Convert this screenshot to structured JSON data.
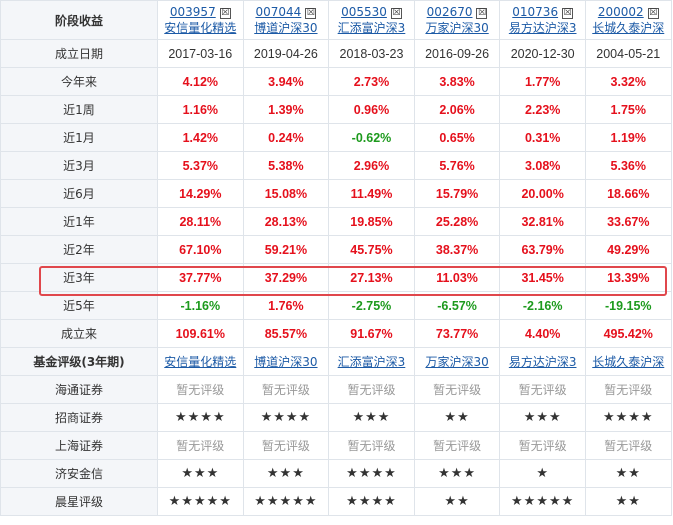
{
  "header": {
    "label": "阶段收益",
    "funds": [
      {
        "code": "003957",
        "name": "安信量化精选",
        "checkbox": "☒"
      },
      {
        "code": "007044",
        "name": "博道沪深30",
        "checkbox": "☒"
      },
      {
        "code": "005530",
        "name": "汇添富沪深3",
        "checkbox": "☒"
      },
      {
        "code": "002670",
        "name": "万家沪深30",
        "checkbox": "☒"
      },
      {
        "code": "010736",
        "name": "易方达沪深3",
        "checkbox": "☒"
      },
      {
        "code": "200002",
        "name": "长城久泰沪深",
        "checkbox": "☒"
      }
    ]
  },
  "inception": {
    "label": "成立日期",
    "dates": [
      "2017-03-16",
      "2019-04-26",
      "2018-03-23",
      "2016-09-26",
      "2020-12-30",
      "2004-05-21"
    ]
  },
  "returns": [
    {
      "label": "今年来",
      "values": [
        "4.12%",
        "3.94%",
        "2.73%",
        "3.83%",
        "1.77%",
        "3.32%"
      ]
    },
    {
      "label": "近1周",
      "values": [
        "1.16%",
        "1.39%",
        "0.96%",
        "2.06%",
        "2.23%",
        "1.75%"
      ]
    },
    {
      "label": "近1月",
      "values": [
        "1.42%",
        "0.24%",
        "-0.62%",
        "0.65%",
        "0.31%",
        "1.19%"
      ]
    },
    {
      "label": "近3月",
      "values": [
        "5.37%",
        "5.38%",
        "2.96%",
        "5.76%",
        "3.08%",
        "5.36%"
      ]
    },
    {
      "label": "近6月",
      "values": [
        "14.29%",
        "15.08%",
        "11.49%",
        "15.79%",
        "20.00%",
        "18.66%"
      ]
    },
    {
      "label": "近1年",
      "values": [
        "28.11%",
        "28.13%",
        "19.85%",
        "25.28%",
        "32.81%",
        "33.67%"
      ]
    },
    {
      "label": "近2年",
      "values": [
        "67.10%",
        "59.21%",
        "45.75%",
        "38.37%",
        "63.79%",
        "49.29%"
      ]
    },
    {
      "label": "近3年",
      "values": [
        "37.77%",
        "37.29%",
        "27.13%",
        "11.03%",
        "31.45%",
        "13.39%"
      ]
    },
    {
      "label": "近5年",
      "values": [
        "-1.16%",
        "1.76%",
        "-2.75%",
        "-6.57%",
        "-2.16%",
        "-19.15%"
      ]
    },
    {
      "label": "成立来",
      "values": [
        "109.61%",
        "85.57%",
        "91.67%",
        "73.77%",
        "4.40%",
        "495.42%"
      ]
    }
  ],
  "rating_header": {
    "label": "基金评级(3年期)",
    "names": [
      "安信量化精选",
      "博道沪深30",
      "汇添富沪深3",
      "万家沪深30",
      "易方达沪深3",
      "长城久泰沪深"
    ]
  },
  "ratings": [
    {
      "label": "海通证券",
      "values": [
        "暂无评级",
        "暂无评级",
        "暂无评级",
        "暂无评级",
        "暂无评级",
        "暂无评级"
      ]
    },
    {
      "label": "招商证券",
      "values": [
        "★★★★",
        "★★★★",
        "★★★",
        "★★",
        "★★★",
        "★★★★"
      ]
    },
    {
      "label": "上海证券",
      "values": [
        "暂无评级",
        "暂无评级",
        "暂无评级",
        "暂无评级",
        "暂无评级",
        "暂无评级"
      ]
    },
    {
      "label": "济安金信",
      "values": [
        "★★★",
        "★★★",
        "★★★★",
        "★★★",
        "★",
        "★★"
      ]
    },
    {
      "label": "晨星评级",
      "values": [
        "★★★★★",
        "★★★★★",
        "★★★★",
        "★★",
        "★★★★★",
        "★★"
      ]
    }
  ],
  "colors": {
    "positive": "#e5101c",
    "negative": "#1d9a1d",
    "link": "#1c5aa6",
    "highlight": "#e0474c"
  }
}
